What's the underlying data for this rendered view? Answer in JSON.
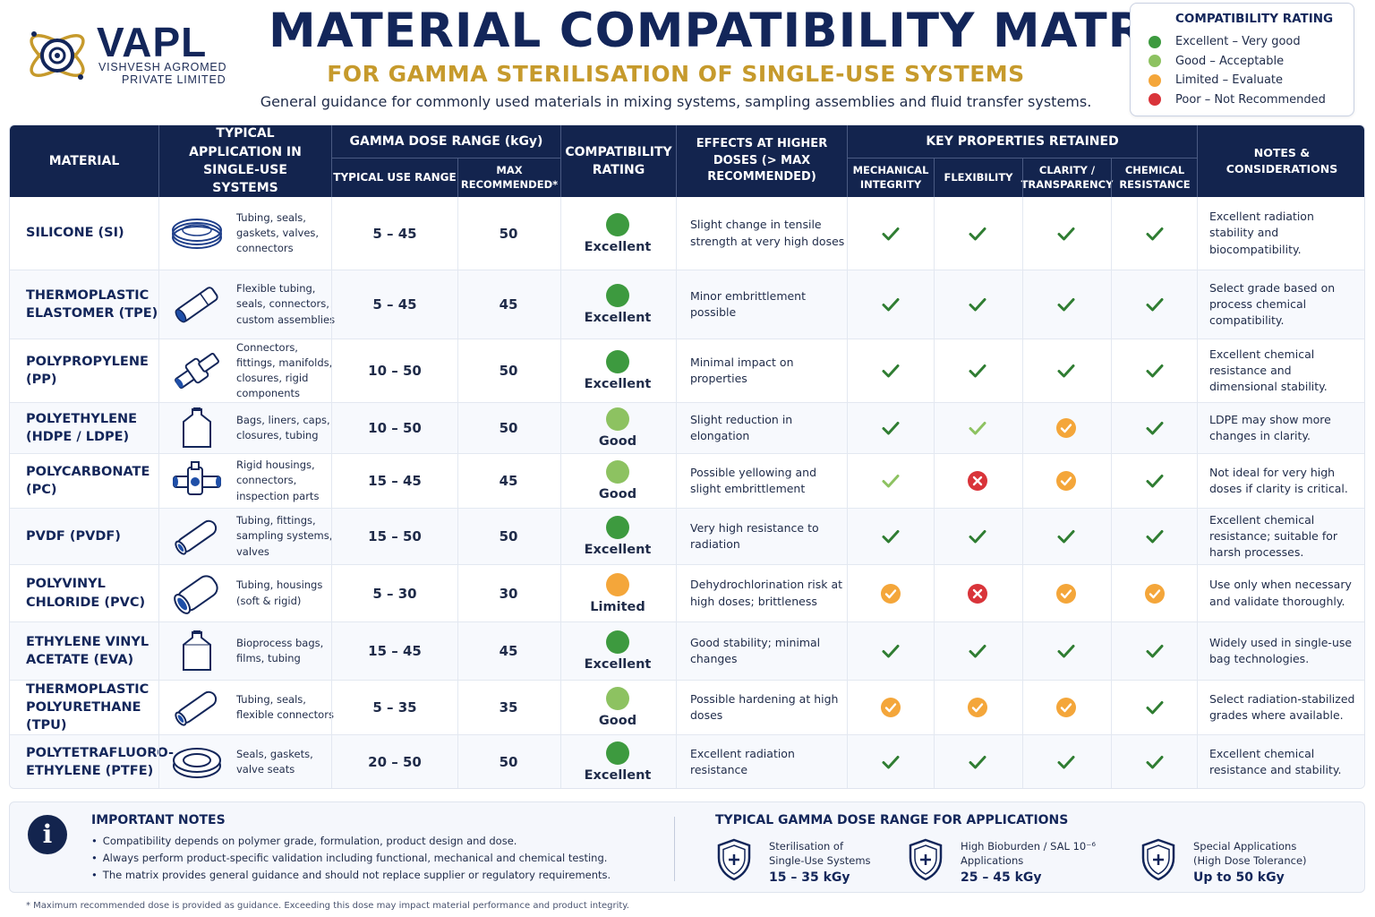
{
  "brand": {
    "name": "VAPL",
    "sub_line1": "VISHVESH AGROMED",
    "sub_line2": "PRIVATE LIMITED"
  },
  "title": "MATERIAL COMPATIBILITY MATRIX",
  "subtitle": "FOR GAMMA STERILISATION OF SINGLE-USE SYSTEMS",
  "tagline": "General guidance for commonly used materials in mixing systems, sampling assemblies and fluid transfer systems.",
  "legend": {
    "title": "COMPATIBILITY RATING",
    "items": [
      {
        "label": "Excellent – Very good",
        "color": "#3d9a3f"
      },
      {
        "label": "Good – Acceptable",
        "color": "#8dc261"
      },
      {
        "label": "Limited – Evaluate",
        "color": "#f4a63a"
      },
      {
        "label": "Poor – Not Recommended",
        "color": "#d9343a"
      }
    ]
  },
  "headers": {
    "material": "MATERIAL",
    "application": "TYPICAL APPLICATION IN SINGLE-USE SYSTEMS",
    "dose_group": "GAMMA DOSE RANGE (kGy)",
    "typical_range": "TYPICAL USE RANGE",
    "max_recommended": "MAX RECOMMENDED*",
    "rating": "COMPATIBILITY RATING",
    "effects": "EFFECTS AT HIGHER DOSES (> MAX RECOMMENDED)",
    "props_group": "KEY PROPERTIES RETAINED",
    "mechanical": "MECHANICAL INTEGRITY",
    "flexibility": "FLEXIBILITY",
    "clarity": "CLARITY / TRANSPARENCY",
    "chemical": "CHEMICAL RESISTANCE",
    "notes": "NOTES & CONSIDERATIONS"
  },
  "rows": [
    {
      "material": "SILICONE (SI)",
      "icon": "coiled-tubing-icon",
      "application": "Tubing, seals, gaskets, valves, connectors",
      "range": "5 – 45",
      "max": "50",
      "rating": "Excellent",
      "rating_color": "#3d9a3f",
      "effects": "Slight change in tensile strength at very high doses",
      "props": [
        "check",
        "check",
        "check",
        "check"
      ],
      "notes": "Excellent radiation stability and biocompatibility."
    },
    {
      "material": "THERMOPLASTIC ELASTOMER (TPE)",
      "icon": "flexible-tube-icon",
      "application": "Flexible tubing, seals, connectors, custom assemblies",
      "range": "5 – 45",
      "max": "45",
      "rating": "Excellent",
      "rating_color": "#3d9a3f",
      "effects": "Minor embrittlement possible",
      "props": [
        "check",
        "check",
        "check",
        "check"
      ],
      "notes": "Select grade based on process chemical compatibility."
    },
    {
      "material": "POLYPROPYLENE (PP)",
      "icon": "connector-fitting-icon",
      "application": "Connectors, fittings, manifolds, closures, rigid components",
      "range": "10 – 50",
      "max": "50",
      "rating": "Excellent",
      "rating_color": "#3d9a3f",
      "effects": "Minimal impact on properties",
      "props": [
        "check",
        "check",
        "check",
        "check"
      ],
      "notes": "Excellent chemical resistance and dimensional stability."
    },
    {
      "material": "POLYETHYLENE (HDPE / LDPE)",
      "icon": "bag-icon",
      "application": "Bags, liners, caps, closures, tubing",
      "range": "10 – 50",
      "max": "50",
      "rating": "Good",
      "rating_color": "#8dc261",
      "effects": "Slight reduction in elongation",
      "props": [
        "check",
        "check-light",
        "limited",
        "check"
      ],
      "notes": "LDPE may show more changes in clarity."
    },
    {
      "material": "POLYCARBONATE (PC)",
      "icon": "housing-valve-icon",
      "application": "Rigid housings, connectors, inspection parts",
      "range": "15 – 45",
      "max": "45",
      "rating": "Good",
      "rating_color": "#8dc261",
      "effects": "Possible yellowing and slight embrittlement",
      "props": [
        "check-light",
        "poor",
        "limited",
        "check"
      ],
      "notes": "Not ideal for very high doses if clarity is critical."
    },
    {
      "material": "PVDF (PVDF)",
      "icon": "tube-icon",
      "application": "Tubing, fittings, sampling systems, valves",
      "range": "15 – 50",
      "max": "50",
      "rating": "Excellent",
      "rating_color": "#3d9a3f",
      "effects": "Very high resistance to radiation",
      "props": [
        "check",
        "check",
        "check",
        "check"
      ],
      "notes": "Excellent chemical resistance; suitable for harsh processes."
    },
    {
      "material": "POLYVINYL CHLORIDE (PVC)",
      "icon": "pipe-icon",
      "application": "Tubing, housings (soft & rigid)",
      "range": "5 – 30",
      "max": "30",
      "rating": "Limited",
      "rating_color": "#f4a63a",
      "effects": "Dehydrochlorination risk at high doses; brittleness",
      "props": [
        "limited",
        "poor",
        "limited",
        "limited"
      ],
      "notes": "Use only when necessary and validate thoroughly."
    },
    {
      "material": "ETHYLENE VINYL ACETATE (EVA)",
      "icon": "bioprocess-bag-icon",
      "application": "Bioprocess bags, films, tubing",
      "range": "15 – 45",
      "max": "45",
      "rating": "Excellent",
      "rating_color": "#3d9a3f",
      "effects": "Good stability; minimal changes",
      "props": [
        "check",
        "check",
        "check",
        "check"
      ],
      "notes": "Widely used in single-use bag technologies."
    },
    {
      "material": "THERMOPLASTIC POLYURETHANE (TPU)",
      "icon": "tube-icon",
      "application": "Tubing, seals, flexible connectors",
      "range": "5 – 35",
      "max": "35",
      "rating": "Good",
      "rating_color": "#8dc261",
      "effects": "Possible hardening at high doses",
      "props": [
        "limited",
        "limited",
        "limited",
        "check"
      ],
      "notes": "Select radiation-stabilized grades where available."
    },
    {
      "material": "POLYTETRAFLUORO-ETHYLENE (PTFE)",
      "icon": "gasket-ring-icon",
      "application": "Seals, gaskets, valve seats",
      "range": "20 – 50",
      "max": "50",
      "rating": "Excellent",
      "rating_color": "#3d9a3f",
      "effects": "Excellent radiation resistance",
      "props": [
        "check",
        "check",
        "check",
        "check"
      ],
      "notes": "Excellent chemical resistance and stability."
    }
  ],
  "important_notes": {
    "title": "IMPORTANT NOTES",
    "items": [
      "Compatibility depends on polymer grade, formulation, product design and dose.",
      "Always perform product-specific validation including functional, mechanical and chemical testing.",
      "The matrix provides general guidance and should not replace supplier or regulatory requirements."
    ]
  },
  "dose_ranges": {
    "title": "TYPICAL GAMMA DOSE RANGE FOR APPLICATIONS",
    "items": [
      {
        "label_line1": "Sterilisation of",
        "label_line2": "Single-Use Systems",
        "value": "15 – 35 kGy"
      },
      {
        "label_line1": "High Bioburden / SAL 10⁻⁶",
        "label_line2": "Applications",
        "value": "25 – 45 kGy"
      },
      {
        "label_line1": "Special Applications",
        "label_line2": "(High Dose Tolerance)",
        "value": "Up to 50 kGy"
      }
    ]
  },
  "footnote": "* Maximum recommended dose is provided as guidance. Exceeding this dose may impact material performance and product integrity.",
  "colors": {
    "navy": "#13244e",
    "gold": "#c69a2c",
    "check_dark": "#2f7d32",
    "check_light": "#8dc261",
    "limited": "#f4a63a",
    "poor": "#d9343a"
  }
}
